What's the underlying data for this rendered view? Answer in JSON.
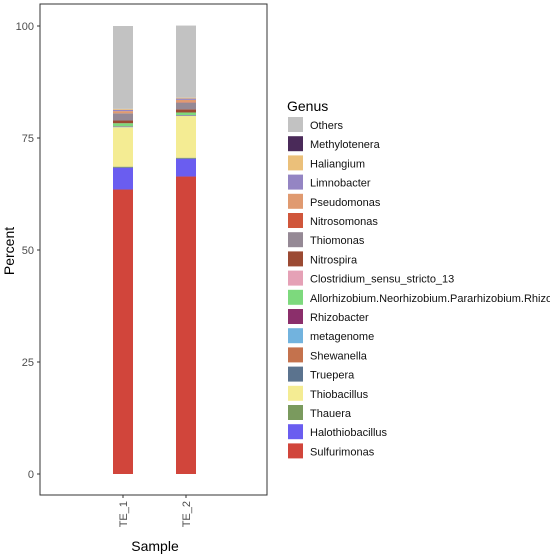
{
  "chart_data": {
    "type": "bar",
    "stacked": true,
    "xlabel": "Sample",
    "ylabel": "Percent",
    "ylim": [
      0,
      100
    ],
    "yticks": [
      0,
      25,
      50,
      75,
      100
    ],
    "grid": false,
    "legend_title": "Genus",
    "legend_position": "right",
    "categories": [
      "TE_1",
      "TE_2"
    ],
    "series": [
      {
        "name": "Sulfurimonas",
        "color": "#D1453B",
        "values": [
          63.5,
          66.4
        ]
      },
      {
        "name": "Halothiobacillus",
        "color": "#6A5DF0",
        "values": [
          4.9,
          4.0
        ]
      },
      {
        "name": "Thauera",
        "color": "#7A9A5E",
        "values": [
          0.2,
          0.2
        ]
      },
      {
        "name": "Thiobacillus",
        "color": "#F4EC93",
        "values": [
          8.8,
          9.3
        ]
      },
      {
        "name": "Truepera",
        "color": "#5B738E",
        "values": [
          0.0,
          0.0
        ]
      },
      {
        "name": "Shewanella",
        "color": "#C4724D",
        "values": [
          0.0,
          0.0
        ]
      },
      {
        "name": "metagenome",
        "color": "#72B3DE",
        "values": [
          0.1,
          0.1
        ]
      },
      {
        "name": "Rhizobacter",
        "color": "#8B2F6B",
        "values": [
          0.1,
          0.1
        ]
      },
      {
        "name": "Allorhizobium.Neorhizobium.Pararhizobium.Rhizobium",
        "color": "#7DD97D",
        "values": [
          0.7,
          0.6
        ]
      },
      {
        "name": "Clostridium_sensu_stricto_13",
        "color": "#E5A1B6",
        "values": [
          0.0,
          0.0
        ]
      },
      {
        "name": "Nitrospira",
        "color": "#9B4A33",
        "values": [
          0.6,
          0.7
        ]
      },
      {
        "name": "Thiomonas",
        "color": "#958995",
        "values": [
          1.6,
          1.5
        ]
      },
      {
        "name": "Nitrosomonas",
        "color": "#D0563B",
        "values": [
          0.0,
          0.1
        ]
      },
      {
        "name": "Pseudomonas",
        "color": "#E09A70",
        "values": [
          0.5,
          0.5
        ]
      },
      {
        "name": "Limnobacter",
        "color": "#9485C3",
        "values": [
          0.3,
          0.3
        ]
      },
      {
        "name": "Haliangium",
        "color": "#EBC07A",
        "values": [
          0.2,
          0.2
        ]
      },
      {
        "name": "Methylotenera",
        "color": "#4A2A59",
        "values": [
          0.0,
          0.0
        ]
      },
      {
        "name": "Others",
        "color": "#C2C2C2",
        "values": [
          18.5,
          16.1
        ]
      }
    ]
  }
}
